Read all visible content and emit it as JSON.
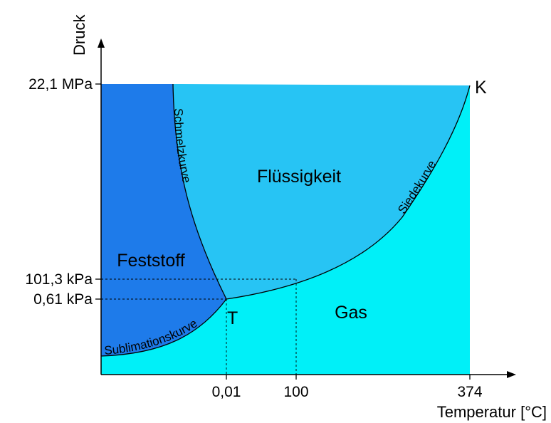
{
  "axes": {
    "y_label": "Druck",
    "x_label": "Temperatur [°C]",
    "y_ticks": [
      "22,1 MPa",
      "101,3 kPa",
      "0,61 kPa"
    ],
    "x_ticks": [
      "0,01",
      "100",
      "374"
    ]
  },
  "regions": {
    "solid": "Feststoff",
    "liquid": "Flüssigkeit",
    "gas": "Gas"
  },
  "curves": {
    "melting": "Schmelzkurve",
    "boiling": "Siedekurve",
    "sublimation": "Sublimationskurve"
  },
  "points": {
    "triple": "T",
    "critical": "K"
  },
  "colors": {
    "solid": "#1E7BEA",
    "liquid": "#27C4F4",
    "gas": "#00F0F8"
  }
}
